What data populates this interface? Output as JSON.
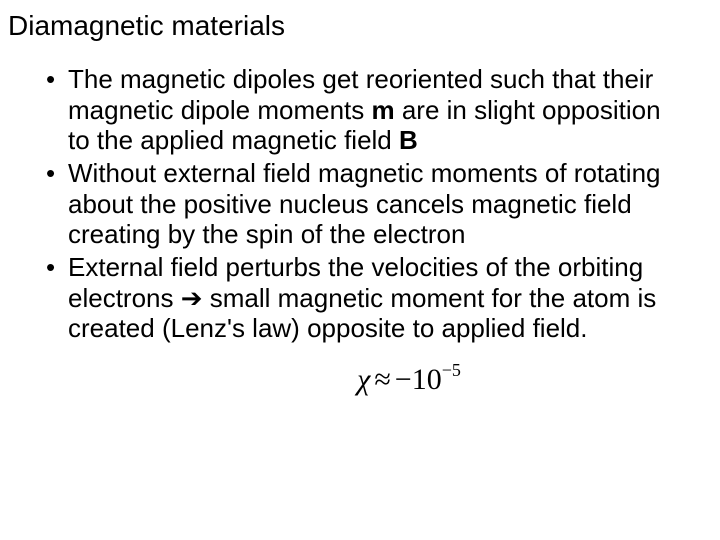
{
  "slide": {
    "title": "Diamagnetic materials",
    "title_fontsize": 28,
    "body_fontsize": 26,
    "text_color": "#000000",
    "background_color": "#ffffff",
    "bullets": [
      {
        "pre": "The magnetic dipoles get reoriented such that their magnetic dipole moments ",
        "bold1": "m",
        "mid": " are in slight opposition to the applied magnetic field ",
        "bold2": "B",
        "post": ""
      },
      {
        "pre": "Without external field magnetic moments of rotating about the positive nucleus cancels magnetic field creating by the spin of  the electron",
        "bold1": "",
        "mid": "",
        "bold2": "",
        "post": ""
      },
      {
        "pre": "External field perturbs the velocities of the orbiting electrons ",
        "bold1": "",
        "mid": "",
        "bold2": "",
        "arrow": "➔",
        "post": " small magnetic moment for the atom is created (Lenz's law) opposite to applied field."
      }
    ],
    "formula": {
      "chi": "χ",
      "approx": "≈",
      "minus": "−",
      "base": "10",
      "exp": "−5",
      "font": "Times New Roman",
      "fontsize": 30,
      "exp_fontsize": 18
    }
  }
}
